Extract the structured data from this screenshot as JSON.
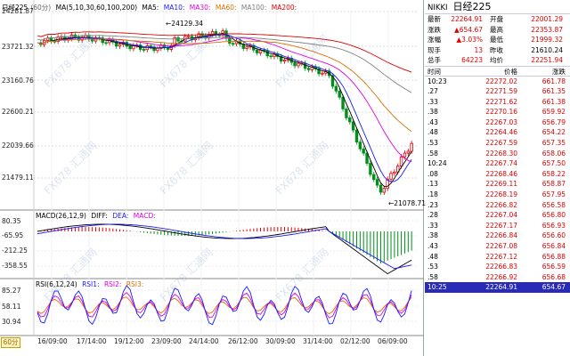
{
  "legend_main": {
    "title": "日经225",
    "period": "(60分)",
    "ma_label": "MA(5,10,30,60,100,200)",
    "ma5": "MA5:",
    "ma10": "MA10:",
    "ma30": "MA30:",
    "ma60": "MA60:",
    "ma100": "MA100:",
    "ma200": "MA200:"
  },
  "price_axis": [
    "24281.87",
    "23721.32",
    "23160.76",
    "22600.21",
    "22039.66",
    "21479.11"
  ],
  "annotations": {
    "high": "24129.34",
    "low": "21078.71"
  },
  "legend_macd": {
    "label": "MACD(26,12,9)",
    "diff": "DIFF:",
    "dea": "DEA:",
    "macd": "MACD:"
  },
  "macd_axis": [
    "80.35",
    "-65.95",
    "-212.25",
    "-358.55"
  ],
  "legend_rsi": {
    "label": "RSI(6,12,24)",
    "rsi1": "RSI1:",
    "rsi2": "RSI2:",
    "rsi3": "RSI3:"
  },
  "rsi_axis": [
    "85.27",
    "58.11",
    "30.94"
  ],
  "x_axis": [
    "16/09:00",
    "17/14:00",
    "19/12:00",
    "23/09:00",
    "24/14:00",
    "26/12:00",
    "30/09:00",
    "31/14:00",
    "02/12:00",
    "06/09:00"
  ],
  "period_button": "60分",
  "watermark": "FX678 汇通网",
  "quote": {
    "code": "NIKKI",
    "name": "日经225",
    "rows": [
      {
        "l1": "最新",
        "v1": "22264.91",
        "c1": "red",
        "l2": "开盘",
        "v2": "22001.29",
        "c2": "red"
      },
      {
        "l1": "涨跌",
        "v1": "▲654.67",
        "c1": "red",
        "l2": "最高",
        "v2": "22353.87",
        "c2": "red"
      },
      {
        "l1": "涨幅",
        "v1": "▲3.03%",
        "c1": "red",
        "l2": "最低",
        "v2": "21999.32",
        "c2": "red"
      },
      {
        "l1": "现手",
        "v1": "13",
        "c1": "red",
        "l2": "昨收",
        "v2": "21610.24",
        "c2": ""
      },
      {
        "l1": "总手",
        "v1": "64223",
        "c1": "red",
        "l2": "均价",
        "v2": "22251.94",
        "c2": "red"
      }
    ],
    "tick_headers": {
      "time": "时间",
      "price": "价格",
      "change": "涨跌"
    },
    "ticks": [
      {
        "t": "10:23",
        "p": "22272.02",
        "v": "661.78"
      },
      {
        "t": ".27",
        "p": "22271.59",
        "v": "661.35"
      },
      {
        "t": ".33",
        "p": "22271.62",
        "v": "661.38"
      },
      {
        "t": ".38",
        "p": "22270.16",
        "v": "659.92"
      },
      {
        "t": ".43",
        "p": "22267.03",
        "v": "656.79"
      },
      {
        "t": ".48",
        "p": "22264.46",
        "v": "654.22"
      },
      {
        "t": ".53",
        "p": "22267.59",
        "v": "657.35"
      },
      {
        "t": ".58",
        "p": "22268.30",
        "v": "658.06"
      },
      {
        "t": "10:24",
        "p": "22267.74",
        "v": "657.50"
      },
      {
        "t": ".08",
        "p": "22268.46",
        "v": "658.22"
      },
      {
        "t": ".13",
        "p": "22269.11",
        "v": "658.87"
      },
      {
        "t": ".18",
        "p": "22268.19",
        "v": "657.95"
      },
      {
        "t": ".23",
        "p": "22266.82",
        "v": "656.58"
      },
      {
        "t": ".28",
        "p": "22267.04",
        "v": "656.80"
      },
      {
        "t": ".33",
        "p": "22267.17",
        "v": "656.93"
      },
      {
        "t": ".38",
        "p": "22266.84",
        "v": "656.60"
      },
      {
        "t": ".43",
        "p": "22267.08",
        "v": "656.84"
      },
      {
        "t": ".48",
        "p": "22267.12",
        "v": "656.88"
      },
      {
        "t": ".53",
        "p": "22266.83",
        "v": "656.59"
      },
      {
        "t": ".58",
        "p": "22266.92",
        "v": "656.68"
      },
      {
        "t": "10:25",
        "p": "22264.91",
        "v": "654.67"
      }
    ]
  },
  "colors": {
    "up": "#e00000",
    "down": "#00901a",
    "ma5": "#000000",
    "ma10": "#1a1aff",
    "ma30": "#e000e0",
    "ma60": "#d87000",
    "ma100": "#808080",
    "ma200": "#e00000"
  }
}
